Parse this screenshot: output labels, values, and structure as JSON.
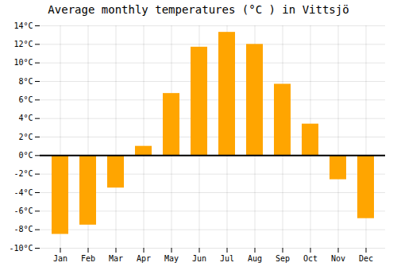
{
  "chart_data": {
    "type": "bar",
    "title": "Average monthly temperatures (°C ) in Vittsjö",
    "categories": [
      "Jan",
      "Feb",
      "Mar",
      "Apr",
      "May",
      "Jun",
      "Jul",
      "Aug",
      "Sep",
      "Oct",
      "Nov",
      "Dec"
    ],
    "values": [
      -8.5,
      -7.5,
      -3.5,
      1.0,
      6.7,
      11.7,
      13.3,
      12.0,
      7.7,
      3.4,
      -2.6,
      -6.8
    ],
    "color": "#FFA500",
    "ylim": [
      -10,
      14
    ],
    "yticks": [
      {
        "value": -10,
        "label": "-10°C"
      },
      {
        "value": -8,
        "label": "-8°C"
      },
      {
        "value": -6,
        "label": "-6°C"
      },
      {
        "value": -4,
        "label": "-4°C"
      },
      {
        "value": -2,
        "label": "-2°C"
      },
      {
        "value": 0,
        "label": "0°C"
      },
      {
        "value": 2,
        "label": "2°C"
      },
      {
        "value": 4,
        "label": "4°C"
      },
      {
        "value": 6,
        "label": "6°C"
      },
      {
        "value": 8,
        "label": "8°C"
      },
      {
        "value": 10,
        "label": "10°C"
      },
      {
        "value": 12,
        "label": "12°C"
      },
      {
        "value": 14,
        "label": "14°C"
      }
    ],
    "grid": true
  }
}
